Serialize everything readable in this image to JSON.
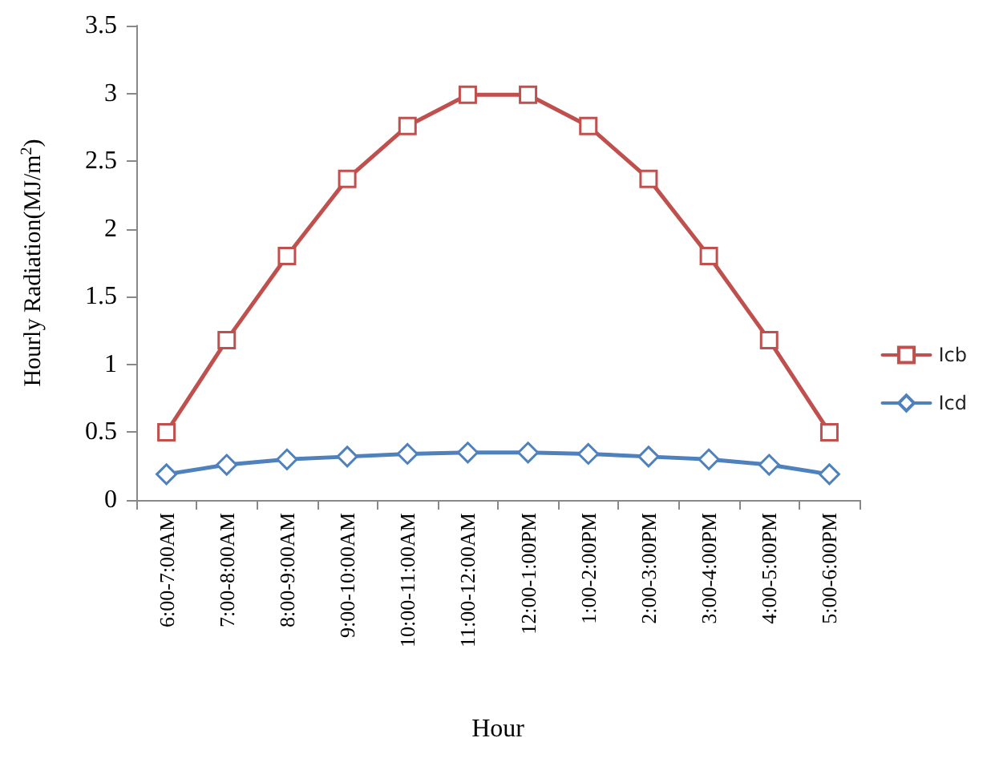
{
  "chart_data": {
    "type": "line",
    "xlabel": "Hour",
    "ylabel": "Hourly Radiation(MJ/m$^{2}$)",
    "categories": [
      "6:00-7:00AM",
      "7:00-8:00AM",
      "8:00-9:00AM",
      "9:00-10:00AM",
      "10:00-11:00AM",
      "11:00-12:00AM",
      "12:00-1:00PM",
      "1:00-2:00PM",
      "2:00-3:00PM",
      "3:00-4:00PM",
      "4:00-5:00PM",
      "5:00-6:00PM"
    ],
    "series": [
      {
        "name": "Icb",
        "color": "#c0504d",
        "marker": "square",
        "values": [
          0.5,
          1.18,
          1.8,
          2.37,
          2.76,
          2.99,
          2.99,
          2.76,
          2.37,
          1.8,
          1.18,
          0.5
        ]
      },
      {
        "name": "Icd",
        "color": "#4f81bd",
        "marker": "diamond",
        "values": [
          0.19,
          0.26,
          0.3,
          0.32,
          0.34,
          0.35,
          0.35,
          0.34,
          0.32,
          0.3,
          0.26,
          0.19
        ]
      }
    ],
    "ylim": [
      0,
      3.5
    ],
    "yticks": [
      0,
      0.5,
      1,
      1.5,
      2,
      2.5,
      3,
      3.5
    ],
    "grid": false,
    "legend": "right",
    "line_style": "solid"
  }
}
